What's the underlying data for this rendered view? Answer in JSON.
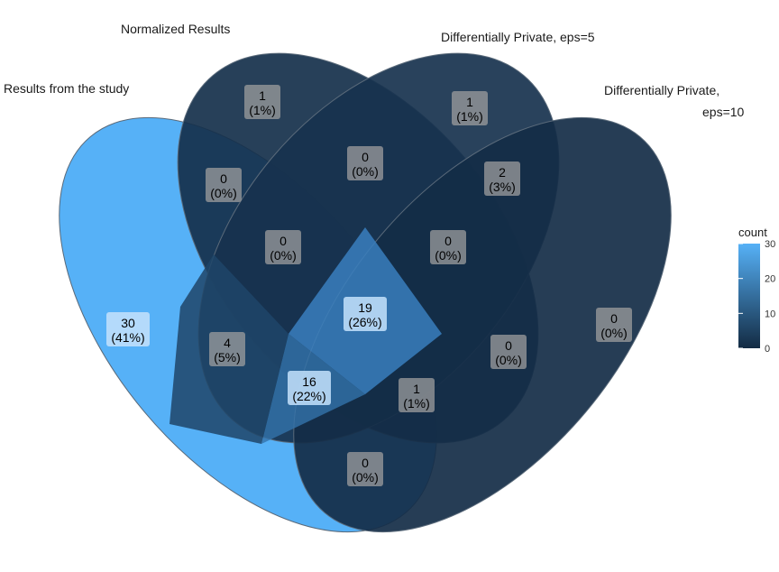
{
  "chart_data": {
    "type": "venn",
    "sets": [
      {
        "name": "Results from the study"
      },
      {
        "name": "Normalized Results"
      },
      {
        "name": "Differentially Private, eps=5"
      },
      {
        "name": "Differentially Private,",
        "name_line2": "eps=10"
      }
    ],
    "regions": [
      {
        "sets": "A",
        "count": 30,
        "percent": "(41%)"
      },
      {
        "sets": "B",
        "count": 1,
        "percent": "(1%)"
      },
      {
        "sets": "C",
        "count": 1,
        "percent": "(1%)"
      },
      {
        "sets": "D",
        "count": 0,
        "percent": "(0%)"
      },
      {
        "sets": "A,B",
        "count": 0,
        "percent": "(0%)"
      },
      {
        "sets": "B,C",
        "count": 0,
        "percent": "(0%)"
      },
      {
        "sets": "C,D",
        "count": 2,
        "percent": "(3%)"
      },
      {
        "sets": "A,D",
        "count": 0,
        "percent": "(0%)"
      },
      {
        "sets": "A,B,C",
        "count": 0,
        "percent": "(0%)"
      },
      {
        "sets": "B,C,D",
        "count": 0,
        "percent": "(0%)"
      },
      {
        "sets": "A,B,D",
        "count": 4,
        "percent": "(5%)"
      },
      {
        "sets": "A,C,D",
        "count": 0,
        "percent": "(0%)"
      },
      {
        "sets": "A,B,C,D",
        "count": 19,
        "percent": "(26%)"
      },
      {
        "sets": "A,B,C,D partial",
        "count": 16,
        "percent": "(22%)"
      },
      {
        "sets": "B,C,D partial",
        "count": 1,
        "percent": "(1%)"
      },
      {
        "sets": "A,C partial",
        "count": 0,
        "percent": "(0%)"
      }
    ],
    "legend": {
      "title": "count",
      "ticks": [
        0,
        10,
        20,
        30
      ],
      "range": [
        0,
        30
      ],
      "color_low": "#132b43",
      "color_high": "#56b1f7"
    }
  }
}
